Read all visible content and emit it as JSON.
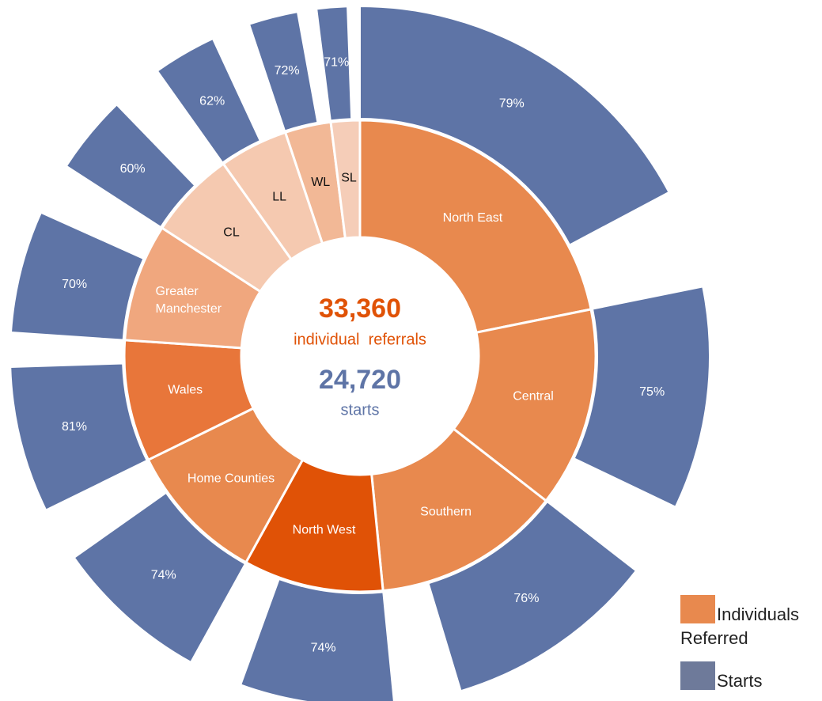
{
  "chart_data": {
    "type": "sunburst",
    "center": {
      "referrals": "33,360",
      "referrals_label": "individual  referrals",
      "starts": "24,720",
      "starts_label": "starts"
    },
    "categories": [
      "North East",
      "Central",
      "Southern",
      "North West",
      "Home Counties",
      "Wales",
      "Greater Manchester",
      "CL",
      "LL",
      "WL",
      "SL"
    ],
    "series": [
      {
        "name": "Individuals Referred",
        "color": "#E8894E",
        "colors": [
          "#E8894E",
          "#E8894E",
          "#E8894E",
          "#E05206",
          "#E8894E",
          "#E8763A",
          "#F0A77E",
          "#F5C9B0",
          "#F5C9B0",
          "#F2B896",
          "#F5CDB8"
        ],
        "values": [
          7280,
          4570,
          4310,
          3200,
          3240,
          2780,
          2690,
          2010,
          1570,
          1050,
          660
        ]
      },
      {
        "name": "Starts",
        "color": "#6E7A9A",
        "segment_color": "#5E74A6",
        "values": [
          79,
          75,
          76,
          74,
          74,
          81,
          70,
          60,
          62,
          72,
          71
        ],
        "value_labels": [
          "79%",
          "75%",
          "76%",
          "74%",
          "74%",
          "81%",
          "70%",
          "60%",
          "62%",
          "72%",
          "71%"
        ]
      }
    ],
    "legend": "lower right"
  }
}
